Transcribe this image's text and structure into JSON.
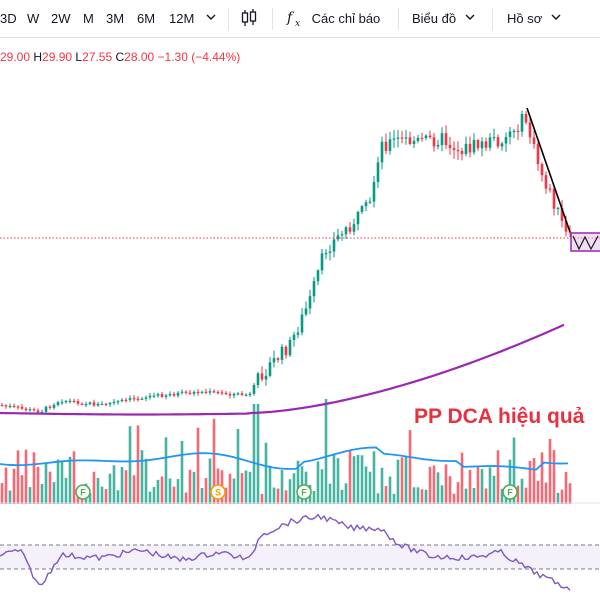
{
  "toolbar": {
    "timeframes": [
      "3D",
      "W",
      "2W",
      "M",
      "3M",
      "6M",
      "12M"
    ],
    "more_icon": "chevron-down-icon",
    "candle_icon": "candlestick-icon",
    "indicators_icon": "fx-icon",
    "indicators_label": "Các chỉ báo",
    "chart_type_label": "Biểu đồ",
    "profile_label": "Hồ sơ"
  },
  "ohlc": {
    "open": "29.00",
    "high_key": "H",
    "high": "29.90",
    "low_key": "L",
    "low": "27.55",
    "close_key": "C",
    "close": "28.00",
    "change": "−1.30",
    "change_pct": "(−4.44%)"
  },
  "annotation": "PP DCA hiệu quả",
  "volume_markers": [
    {
      "label": "F",
      "color": "#4caf50"
    },
    {
      "label": "S",
      "color": "#ff9800"
    },
    {
      "label": "F",
      "color": "#4caf50"
    },
    {
      "label": "F",
      "color": "#4caf50"
    }
  ],
  "colors": {
    "up": "#089981",
    "down": "#f23645",
    "ma_long": "#9c27b0",
    "volume_ma": "#2196f3",
    "trendline": "#000000",
    "rsi": "#7e57c2",
    "price_line": "#f23645"
  },
  "chart_data": [
    {
      "type": "candlestick",
      "series": [
        {
          "name": "price",
          "ohlc_last": {
            "open": 29.0,
            "high": 29.9,
            "low": 27.55,
            "close": 28.0
          }
        }
      ]
    },
    {
      "type": "bar",
      "series": [
        {
          "name": "volume"
        }
      ]
    },
    {
      "type": "line",
      "series": [
        {
          "name": "rsi"
        }
      ]
    }
  ]
}
